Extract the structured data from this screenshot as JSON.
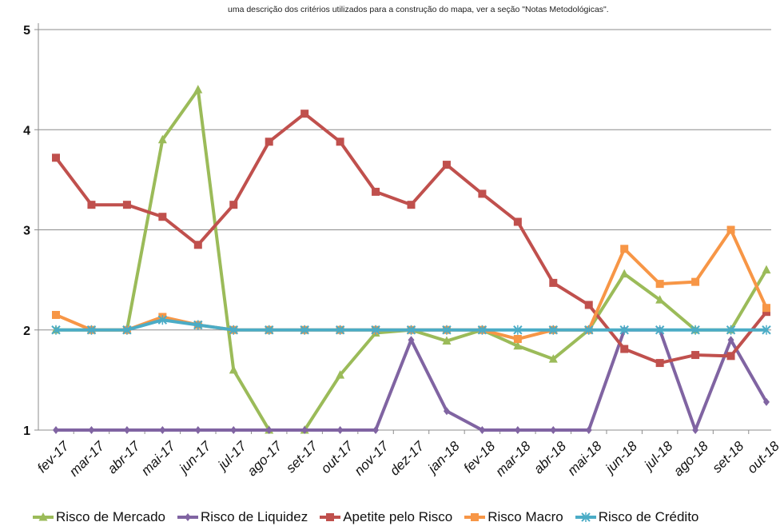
{
  "note": "uma descrição dos critérios utilizados para a construção do mapa, ver a seção \"Notas Metodológicas\".",
  "chart_data": {
    "type": "line",
    "categories": [
      "fev-17",
      "mar-17",
      "abr-17",
      "mai-17",
      "jun-17",
      "jul-17",
      "ago-17",
      "set-17",
      "out-17",
      "nov-17",
      "dez-17",
      "jan-18",
      "fev-18",
      "mar-18",
      "abr-18",
      "mai-18",
      "jun-18",
      "jul-18",
      "ago-18",
      "set-18",
      "out-18"
    ],
    "ylim": [
      1,
      5
    ],
    "yticks": [
      1,
      2,
      3,
      4,
      5
    ],
    "grid": true,
    "legend_position": "bottom",
    "series": [
      {
        "name": "Risco de Mercado",
        "color": "#9BBB59",
        "marker": "triangle",
        "values": [
          2.0,
          2.0,
          2.0,
          3.9,
          4.4,
          1.6,
          1.0,
          1.0,
          1.55,
          1.97,
          2.0,
          1.89,
          2.0,
          1.84,
          1.71,
          2.0,
          2.56,
          2.3,
          2.0,
          2.0,
          2.6
        ]
      },
      {
        "name": "Risco de Liquidez",
        "color": "#8064A2",
        "marker": "diamond",
        "values": [
          1.0,
          1.0,
          1.0,
          1.0,
          1.0,
          1.0,
          1.0,
          1.0,
          1.0,
          1.0,
          1.9,
          1.19,
          1.0,
          1.0,
          1.0,
          1.0,
          2.0,
          2.0,
          1.0,
          1.9,
          1.28
        ]
      },
      {
        "name": "Apetite pelo Risco",
        "color": "#C0504D",
        "marker": "square",
        "values": [
          3.72,
          3.25,
          3.25,
          3.13,
          2.85,
          3.25,
          3.88,
          4.16,
          3.88,
          3.38,
          3.25,
          3.65,
          3.36,
          3.08,
          2.47,
          2.25,
          1.81,
          1.67,
          1.75,
          1.74,
          2.18
        ]
      },
      {
        "name": "Risco Macro",
        "color": "#F79646",
        "marker": "square",
        "values": [
          2.15,
          2.0,
          2.0,
          2.13,
          2.05,
          2.0,
          2.0,
          2.0,
          2.0,
          2.0,
          2.0,
          2.0,
          2.0,
          1.91,
          2.0,
          2.0,
          2.81,
          2.46,
          2.48,
          3.0,
          2.22
        ]
      },
      {
        "name": "Risco de Crédito",
        "color": "#4BACC6",
        "marker": "x",
        "values": [
          2.0,
          2.0,
          2.0,
          2.1,
          2.05,
          2.0,
          2.0,
          2.0,
          2.0,
          2.0,
          2.0,
          2.0,
          2.0,
          2.0,
          2.0,
          2.0,
          2.0,
          2.0,
          2.0,
          2.0,
          2.0
        ]
      }
    ]
  }
}
